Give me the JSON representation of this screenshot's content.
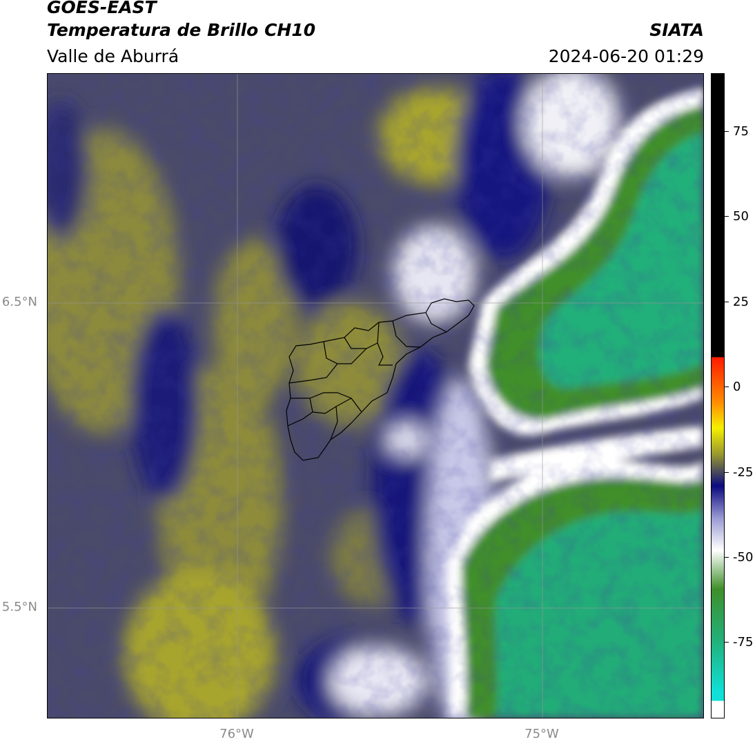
{
  "header": {
    "title": "GOES-EAST",
    "subtitle": "Temperatura de Brillo CH10",
    "region": "Valle de Aburrá",
    "organization": "SIATA",
    "datetime": "2024-06-20 01:29"
  },
  "map": {
    "lat_labels": [
      "6.5°N",
      "5.5°N"
    ],
    "lon_labels": [
      "76°W",
      "75°W"
    ],
    "gridlines": true,
    "features": [
      "brightness-temperature-field",
      "valle-de-aburra-municipal-boundaries"
    ]
  },
  "colorbar": {
    "tick_labels": [
      "75",
      "50",
      "25",
      "0",
      "-25",
      "-50",
      "-75"
    ],
    "colors": {
      "black": "#000000",
      "red": "#ff1a00",
      "orange": "#ff8c00",
      "yellow": "#f5f000",
      "olive": "#9a9a2e",
      "navy": "#0b0b80",
      "lavender": "#9a9ad4",
      "white": "#ffffff",
      "green": "#3f8f2a",
      "teal": "#22b07a",
      "cyan": "#10e0d8"
    }
  }
}
